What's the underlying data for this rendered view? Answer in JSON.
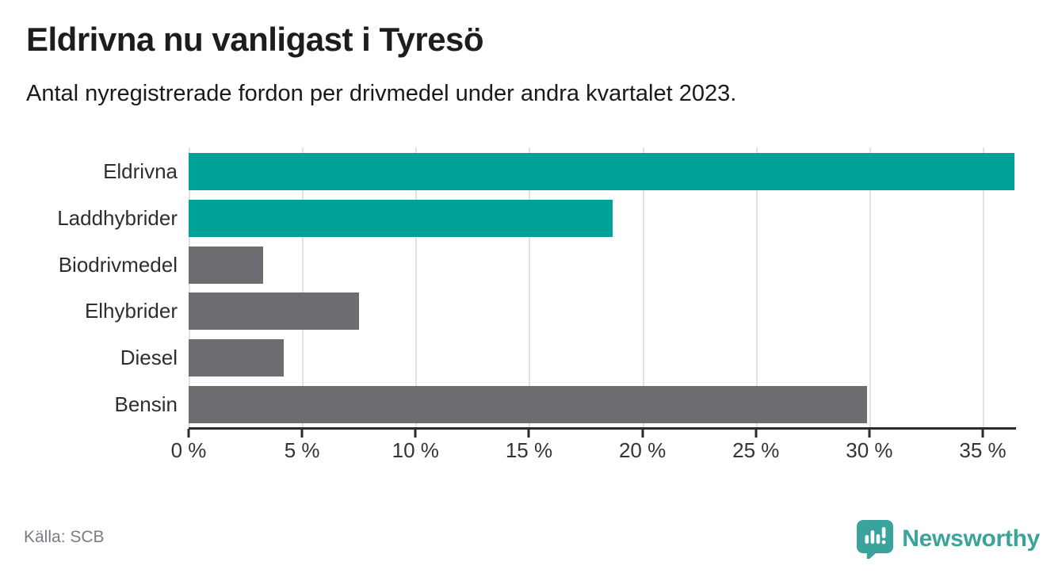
{
  "header": {
    "title": "Eldrivna nu vanligast i Tyresö",
    "subtitle": "Antal nyregistrerade fordon per drivmedel under andra kvartalet 2023."
  },
  "source": {
    "label": "Källa: SCB"
  },
  "branding": {
    "name": "Newsworthy",
    "icon": "newsworthy-badge-icon"
  },
  "colors": {
    "accent": "#00a199",
    "neutral": "#6c6c71",
    "grid": "#e2e2e2",
    "axis": "#2b2b2b",
    "logo": "#3aa39c",
    "title_text": "#1d1d1b",
    "label_text": "#2e2e2e",
    "source_text": "#7b7b84"
  },
  "chart_data": {
    "type": "bar",
    "orientation": "horizontal",
    "title": "Eldrivna nu vanligast i Tyresö",
    "subtitle": "Antal nyregistrerade fordon per drivmedel under andra kvartalet 2023.",
    "categories": [
      "Eldrivna",
      "Laddhybrider",
      "Biodrivmedel",
      "Elhybrider",
      "Diesel",
      "Bensin"
    ],
    "values": [
      36.4,
      18.7,
      3.3,
      7.5,
      4.2,
      29.9
    ],
    "unit": "%",
    "highlighted": [
      true,
      true,
      false,
      false,
      false,
      false
    ],
    "xlim": [
      0,
      36.43
    ],
    "x_ticks": [
      0,
      5,
      10,
      15,
      20,
      25,
      30,
      35
    ],
    "x_tick_labels": [
      "0 %",
      "5 %",
      "10 %",
      "15 %",
      "20 %",
      "25 %",
      "30 %",
      "35 %"
    ],
    "grid": true,
    "legend": "none",
    "xlabel": "",
    "ylabel": ""
  }
}
